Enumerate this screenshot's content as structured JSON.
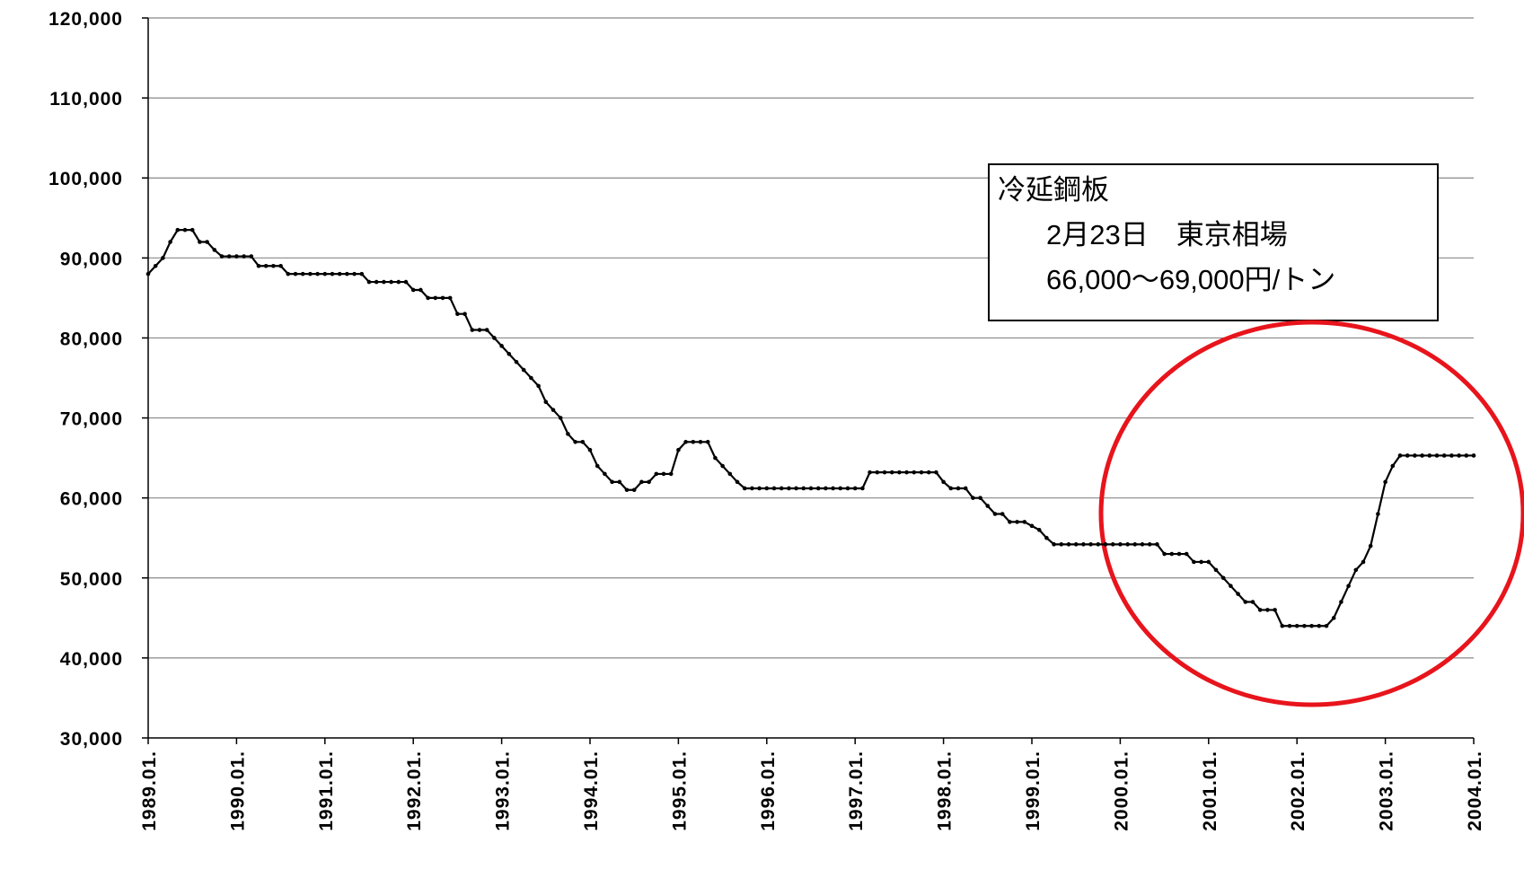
{
  "chart_data": {
    "type": "line",
    "categories": [
      "1989.01.",
      null,
      null,
      null,
      null,
      null,
      null,
      null,
      null,
      null,
      null,
      null,
      "1990.01.",
      null,
      null,
      null,
      null,
      null,
      null,
      null,
      null,
      null,
      null,
      null,
      "1991.01.",
      null,
      null,
      null,
      null,
      null,
      null,
      null,
      null,
      null,
      null,
      null,
      "1992.01.",
      null,
      null,
      null,
      null,
      null,
      null,
      null,
      null,
      null,
      null,
      null,
      "1993.01.",
      null,
      null,
      null,
      null,
      null,
      null,
      null,
      null,
      null,
      null,
      null,
      "1994.01.",
      null,
      null,
      null,
      null,
      null,
      null,
      null,
      null,
      null,
      null,
      null,
      "1995.01.",
      null,
      null,
      null,
      null,
      null,
      null,
      null,
      null,
      null,
      null,
      null,
      "1996.01.",
      null,
      null,
      null,
      null,
      null,
      null,
      null,
      null,
      null,
      null,
      null,
      "1997.01.",
      null,
      null,
      null,
      null,
      null,
      null,
      null,
      null,
      null,
      null,
      null,
      "1998.01.",
      null,
      null,
      null,
      null,
      null,
      null,
      null,
      null,
      null,
      null,
      null,
      "1999.01.",
      null,
      null,
      null,
      null,
      null,
      null,
      null,
      null,
      null,
      null,
      null,
      "2000.01.",
      null,
      null,
      null,
      null,
      null,
      null,
      null,
      null,
      null,
      null,
      null,
      "2001.01.",
      null,
      null,
      null,
      null,
      null,
      null,
      null,
      null,
      null,
      null,
      null,
      "2002.01.",
      null,
      null,
      null,
      null,
      null,
      null,
      null,
      null,
      null,
      null,
      null,
      "2003.01.",
      null,
      null,
      null,
      null,
      null,
      null,
      null,
      null,
      null,
      null,
      null,
      "2004.01."
    ],
    "series": [
      {
        "color": "#000000",
        "values": [
          88000,
          89000,
          90000,
          92000,
          93500,
          93500,
          93500,
          92000,
          92000,
          91000,
          90200,
          90200,
          90200,
          90200,
          90200,
          89000,
          89000,
          89000,
          89000,
          88000,
          88000,
          88000,
          88000,
          88000,
          88000,
          88000,
          88000,
          88000,
          88000,
          88000,
          87000,
          87000,
          87000,
          87000,
          87000,
          87000,
          86000,
          86000,
          85000,
          85000,
          85000,
          85000,
          83000,
          83000,
          81000,
          81000,
          81000,
          80000,
          79000,
          78000,
          77000,
          76000,
          75000,
          74000,
          72000,
          71000,
          70000,
          68000,
          67000,
          67000,
          66000,
          64000,
          63000,
          62000,
          62000,
          61000,
          61000,
          62000,
          62000,
          63000,
          63000,
          63000,
          66000,
          67000,
          67000,
          67000,
          67000,
          65000,
          64000,
          63000,
          62000,
          61200,
          61200,
          61200,
          61200,
          61200,
          61200,
          61200,
          61200,
          61200,
          61200,
          61200,
          61200,
          61200,
          61200,
          61200,
          61200,
          61200,
          63200,
          63200,
          63200,
          63200,
          63200,
          63200,
          63200,
          63200,
          63200,
          63200,
          62000,
          61200,
          61200,
          61200,
          60000,
          60000,
          59000,
          58000,
          58000,
          57000,
          57000,
          57000,
          56500,
          56000,
          55000,
          54200,
          54200,
          54200,
          54200,
          54200,
          54200,
          54200,
          54200,
          54200,
          54200,
          54200,
          54200,
          54200,
          54200,
          54200,
          53000,
          53000,
          53000,
          53000,
          52000,
          52000,
          52000,
          51000,
          50000,
          49000,
          48000,
          47000,
          47000,
          46000,
          46000,
          46000,
          44000,
          44000,
          44000,
          44000,
          44000,
          44000,
          44000,
          45000,
          47000,
          49000,
          51000,
          52000,
          54000,
          58000,
          62000,
          64000,
          65300,
          65300,
          65300,
          65300,
          65300,
          65300,
          65300,
          65300,
          65300,
          65300,
          65300
        ]
      }
    ],
    "ylim": [
      30000,
      120000
    ],
    "yticks": [
      {
        "value": 30000,
        "label": "30,000"
      },
      {
        "value": 40000,
        "label": "40,000"
      },
      {
        "value": 50000,
        "label": "50,000"
      },
      {
        "value": 60000,
        "label": "60,000"
      },
      {
        "value": 70000,
        "label": "70,000"
      },
      {
        "value": 80000,
        "label": "80,000"
      },
      {
        "value": 90000,
        "label": "90,000"
      },
      {
        "value": 100000,
        "label": "100,000"
      },
      {
        "value": 110000,
        "label": "110,000"
      },
      {
        "value": 120000,
        "label": "120,000"
      }
    ],
    "grid": true,
    "annotation": [
      "冷延鋼板",
      "2月23日　東京相場",
      "66,000～69,000円/トン"
    ]
  }
}
